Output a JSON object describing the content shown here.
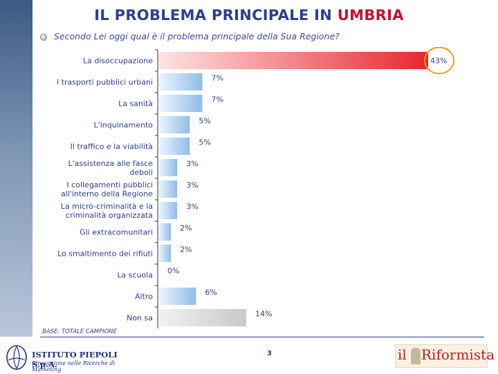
{
  "title": {
    "prefix": "IL PROBLEMA PRINCIPALE IN ",
    "highlight": "UMBRIA"
  },
  "question": "Secondo Lei oggi qual è il problema principale della Sua Regione?",
  "footnote": "BASE: TOTALE CAMPIONE",
  "page_number": "3",
  "logos": {
    "left_name": "ISTITUTO PIEPOLI  S.p.A.",
    "left_tagline": "Innovazione nelle Ricerche di Marketing",
    "right_il": "il",
    "right_name": "Riformista"
  },
  "colors": {
    "highlight_bar": "#e8262e",
    "standard_bar": "#8fbde8",
    "nonsa_bar": "#c9c9c9",
    "circle": "#f39a1a",
    "title": "#2b3f8f",
    "title_highlight": "#c8102e"
  },
  "chart_data": {
    "type": "bar",
    "orientation": "horizontal",
    "categories": [
      "La disoccupazione",
      "I trasporti pubblici urbani",
      "La sanità",
      "L'inquinamento",
      "Il traffico e la viabilità",
      "L'assistenza alle fasce deboli",
      "I collegamenti pubblici all'interno della Regione",
      "La micro-criminalità e la criminalità organizzata",
      "Gli extracomunitari",
      "Lo smaltimento dei rifiuti",
      "La scuola",
      "Altro",
      "Non sa"
    ],
    "category_lines": [
      [
        "La disoccupazione"
      ],
      [
        "I trasporti pubblici urbani"
      ],
      [
        "La sanità"
      ],
      [
        "L'inquinamento"
      ],
      [
        "Il traffico e la viabilità"
      ],
      [
        "L'assistenza alle fasce",
        "deboli"
      ],
      [
        "I collegamenti pubblici",
        "all'interno della Regione"
      ],
      [
        "La micro-criminalità e la",
        "criminalità organizzata"
      ],
      [
        "Gli extracomunitari"
      ],
      [
        "Lo smaltimento dei rifiuti"
      ],
      [
        "La scuola"
      ],
      [
        "Altro"
      ],
      [
        "Non sa"
      ]
    ],
    "values": [
      43,
      7,
      7,
      5,
      5,
      3,
      3,
      3,
      2,
      2,
      0,
      6,
      14
    ],
    "value_labels": [
      "43%",
      "7%",
      "7%",
      "5%",
      "5%",
      "3%",
      "3%",
      "3%",
      "2%",
      "2%",
      "0%",
      "6%",
      "14%"
    ],
    "unit": "%",
    "highlighted_index": 0,
    "nonsa_index": 12
  }
}
